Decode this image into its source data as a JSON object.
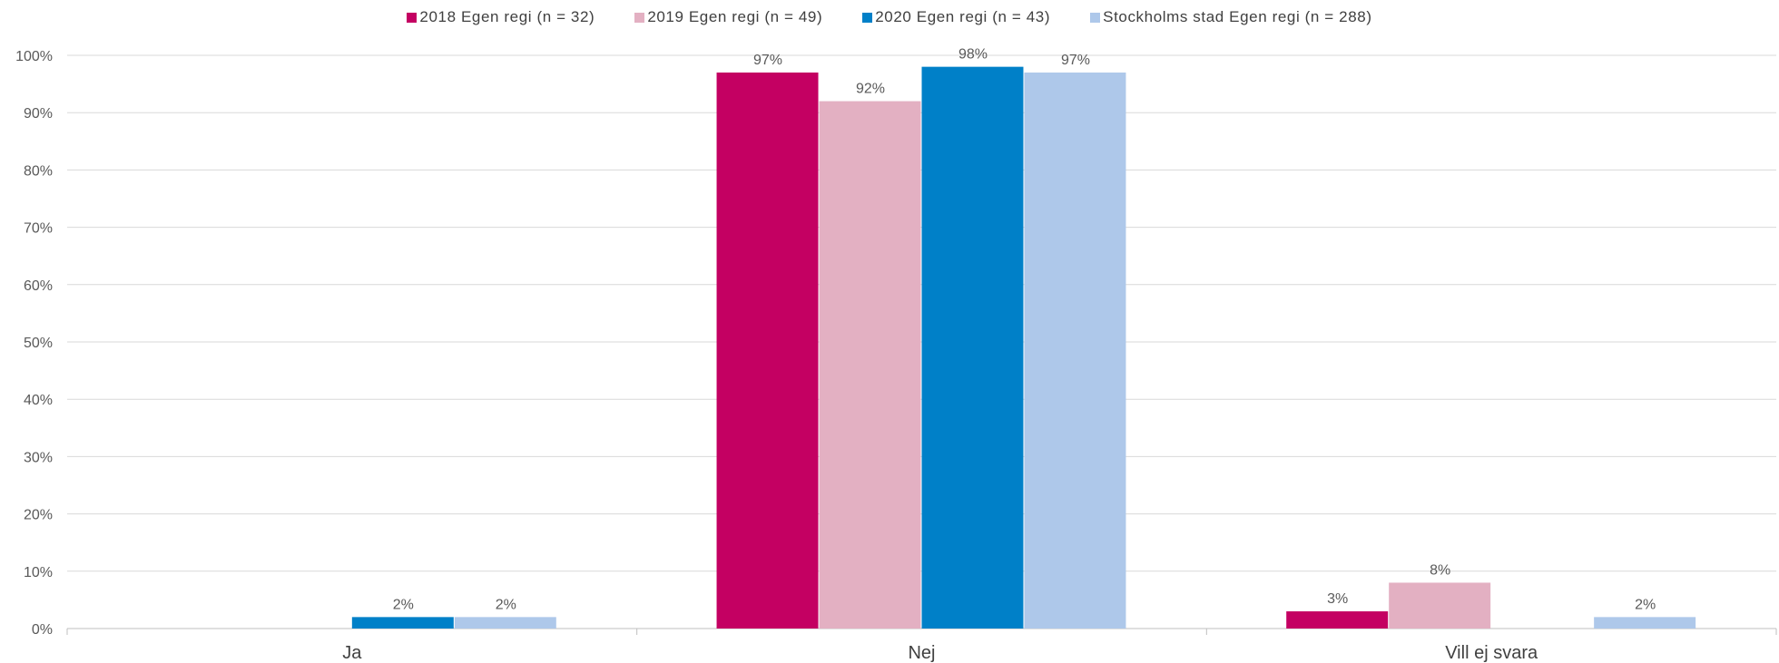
{
  "chart_data": {
    "type": "bar",
    "categories": [
      "Ja",
      "Nej",
      "Vill ej svara"
    ],
    "series": [
      {
        "name": "2018 Egen regi (n = 32)",
        "color": "#c40062",
        "values": [
          null,
          97,
          3
        ],
        "labels": [
          "",
          "97%",
          "3%"
        ]
      },
      {
        "name": "2019 Egen regi (n = 49)",
        "color": "#e3b0c2",
        "values": [
          null,
          92,
          8
        ],
        "labels": [
          "",
          "92%",
          "8%"
        ]
      },
      {
        "name": "2020 Egen regi (n = 43)",
        "color": "#0080c8",
        "values": [
          2,
          98,
          null
        ],
        "labels": [
          "2%",
          "98%",
          ""
        ]
      },
      {
        "name": "Stockholms stad Egen regi (n = 288)",
        "color": "#aec8ea",
        "values": [
          2,
          97,
          2
        ],
        "labels": [
          "2%",
          "97%",
          "2%"
        ]
      }
    ],
    "y_ticks": [
      "0%",
      "10%",
      "20%",
      "30%",
      "40%",
      "50%",
      "60%",
      "70%",
      "80%",
      "90%",
      "100%"
    ],
    "ylim": [
      0,
      100
    ],
    "grid": true,
    "legend_position": "top"
  }
}
